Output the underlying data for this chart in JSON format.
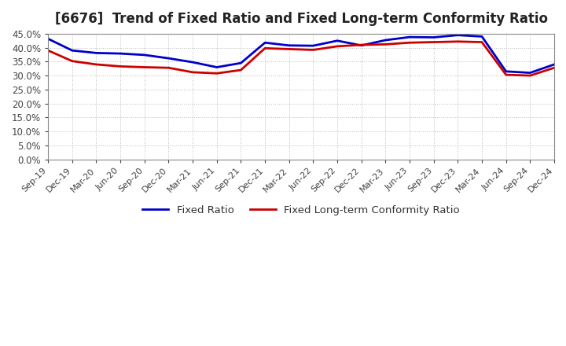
{
  "title": "[6676]  Trend of Fixed Ratio and Fixed Long-term Conformity Ratio",
  "title_fontsize": 12,
  "x_labels": [
    "Sep-19",
    "Dec-19",
    "Mar-20",
    "Jun-20",
    "Sep-20",
    "Dec-20",
    "Mar-21",
    "Jun-21",
    "Sep-21",
    "Dec-21",
    "Mar-22",
    "Jun-22",
    "Sep-22",
    "Dec-22",
    "Mar-23",
    "Jun-23",
    "Sep-23",
    "Dec-23",
    "Mar-24",
    "Jun-24",
    "Sep-24",
    "Dec-24"
  ],
  "fixed_ratio": [
    0.432,
    0.39,
    0.381,
    0.379,
    0.374,
    0.362,
    0.348,
    0.33,
    0.345,
    0.418,
    0.408,
    0.407,
    0.425,
    0.408,
    0.427,
    0.438,
    0.437,
    0.445,
    0.44,
    0.315,
    0.31,
    0.34
  ],
  "fixed_lt_ratio": [
    0.39,
    0.352,
    0.34,
    0.333,
    0.33,
    0.328,
    0.312,
    0.308,
    0.32,
    0.398,
    0.395,
    0.392,
    0.405,
    0.41,
    0.412,
    0.418,
    0.42,
    0.422,
    0.42,
    0.303,
    0.3,
    0.328
  ],
  "fixed_ratio_color": "#0000cc",
  "fixed_lt_ratio_color": "#cc0000",
  "ylim": [
    0.0,
    0.45
  ],
  "yticks": [
    0.0,
    0.05,
    0.1,
    0.15,
    0.2,
    0.25,
    0.3,
    0.35,
    0.4,
    0.45
  ],
  "bg_color": "#ffffff",
  "grid_color": "#aaaaaa",
  "legend_fixed": "Fixed Ratio",
  "legend_fixed_lt": "Fixed Long-term Conformity Ratio",
  "line_width": 2.0
}
